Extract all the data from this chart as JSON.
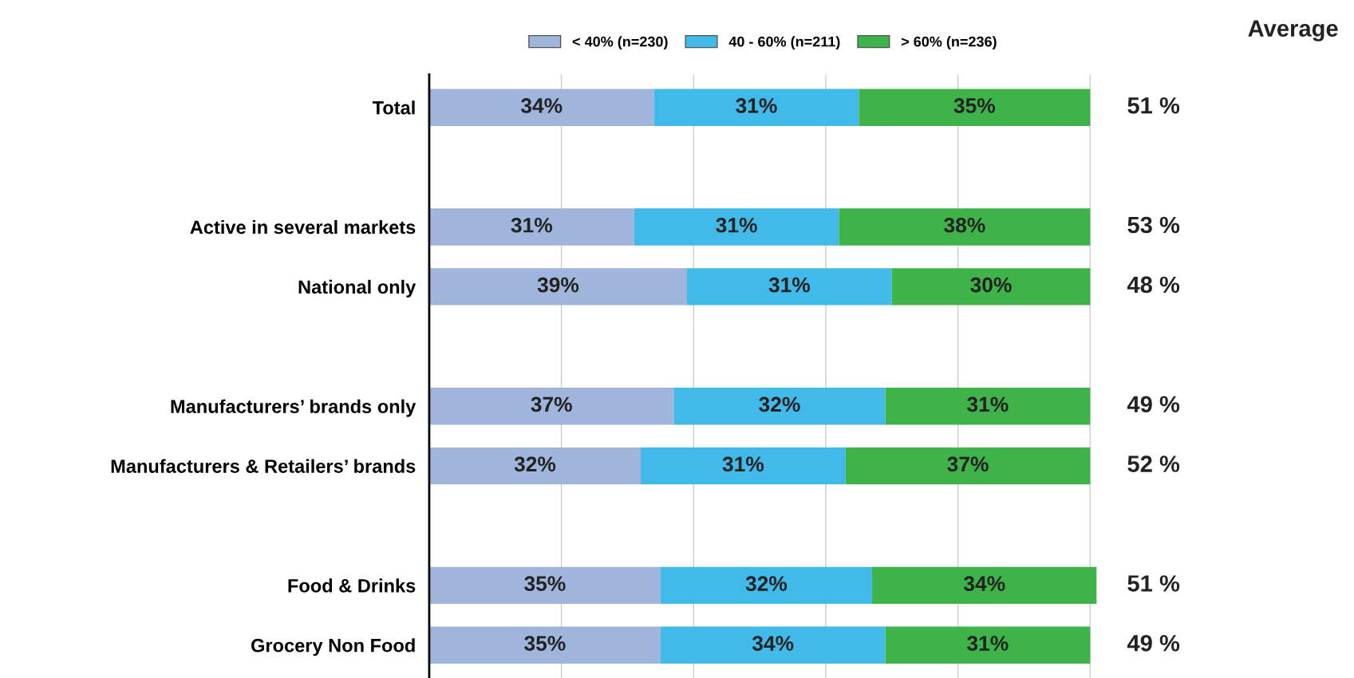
{
  "chart_data": {
    "type": "bar",
    "orientation": "horizontal",
    "stacked": true,
    "categories": [
      "Total",
      null,
      "Active in several markets",
      "National only",
      null,
      "Manufacturers’ brands only",
      "Manufacturers & Retailers’ brands",
      null,
      "Food & Drinks",
      "Grocery Non Food"
    ],
    "series": [
      {
        "name": "< 40% (n=230)",
        "color": "#9fb5dc",
        "values": [
          34,
          null,
          31,
          39,
          null,
          37,
          32,
          null,
          35,
          35
        ],
        "value_labels": [
          "34%",
          null,
          "31%",
          "39%",
          null,
          "37%",
          "32%",
          null,
          "35%",
          "35%"
        ]
      },
      {
        "name": "40 - 60% (n=211)",
        "color": "#41b9e9",
        "values": [
          31,
          null,
          31,
          31,
          null,
          32,
          31,
          null,
          32,
          34
        ],
        "value_labels": [
          "31%",
          null,
          "31%",
          "31%",
          null,
          "32%",
          "31%",
          null,
          "32%",
          "34%"
        ]
      },
      {
        "name": "> 60% (n=236)",
        "color": "#3db34a",
        "values": [
          35,
          null,
          38,
          30,
          null,
          31,
          37,
          null,
          34,
          31
        ],
        "value_labels": [
          "35%",
          null,
          "38%",
          "30%",
          null,
          "31%",
          "37%",
          null,
          "34%",
          "31%"
        ]
      }
    ],
    "grid": "x",
    "tick_labels": "y",
    "legend": "top",
    "annotations": [
      "Average",
      "51 %",
      "53 %",
      "48 %",
      "49 %",
      "52 %",
      "51 %",
      "49 %"
    ]
  }
}
